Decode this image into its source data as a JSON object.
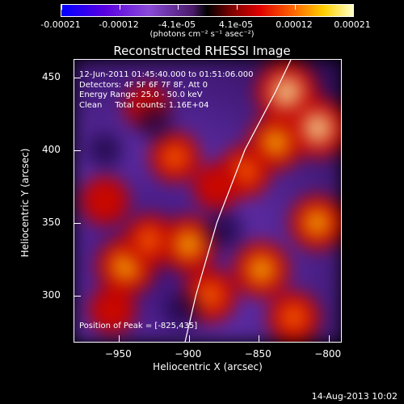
{
  "colorbar": {
    "labels": [
      "-0.00021",
      "-0.00012",
      "-4.1e-05",
      "4.1e-05",
      "0.00012",
      "0.00021"
    ],
    "units": "(photons cm⁻² s⁻¹ asec⁻²)"
  },
  "chart_data": {
    "type": "heatmap",
    "title": "Reconstructed RHESSI Image",
    "xlabel": "Heliocentric X (arcsec)",
    "ylabel": "Heliocentric Y (arcsec)",
    "xlim": [
      -982,
      -790
    ],
    "ylim": [
      267,
      462
    ],
    "x_ticks": [
      -950,
      -900,
      -850,
      -800
    ],
    "y_ticks": [
      300,
      350,
      400,
      450
    ],
    "x_tick_labels": [
      "−950",
      "−900",
      "−850",
      "−800"
    ],
    "y_tick_labels": [
      "300",
      "350",
      "400",
      "450"
    ],
    "annotations": [
      "12-Jun-2011 01:45:40.000 to 01:51:06.000",
      "Detectors: 4F 5F 6F 7F 8F, Att 0",
      "Energy Range: 25.0 - 50.0 keV",
      "Clean     Total counts: 1.16E+04"
    ],
    "peak_label": "Position of Peak = [-825,435]",
    "peak": [
      -825,
      435
    ],
    "colorbar_range": [
      -0.00021,
      0.00021
    ],
    "limb_curve": [
      [
        -903,
        267
      ],
      [
        -895,
        300
      ],
      [
        -880,
        350
      ],
      [
        -860,
        400
      ],
      [
        -838,
        440
      ],
      [
        -827,
        462
      ]
    ],
    "sources": [
      {
        "x": -830,
        "y": 440,
        "v": 1.0
      },
      {
        "x": -808,
        "y": 415,
        "v": 0.95
      },
      {
        "x": -838,
        "y": 405,
        "v": 0.8
      },
      {
        "x": -860,
        "y": 385,
        "v": 0.7
      },
      {
        "x": -945,
        "y": 320,
        "v": 0.9
      },
      {
        "x": -928,
        "y": 338,
        "v": 0.7
      },
      {
        "x": -900,
        "y": 335,
        "v": 0.85
      },
      {
        "x": -885,
        "y": 300,
        "v": 0.75
      },
      {
        "x": -848,
        "y": 318,
        "v": 0.85
      },
      {
        "x": -808,
        "y": 350,
        "v": 0.8
      },
      {
        "x": -825,
        "y": 285,
        "v": 0.7
      },
      {
        "x": -910,
        "y": 395,
        "v": 0.65
      },
      {
        "x": -960,
        "y": 365,
        "v": 0.6
      },
      {
        "x": -880,
        "y": 375,
        "v": 0.55
      },
      {
        "x": -930,
        "y": 430,
        "v": 0.5
      },
      {
        "x": -955,
        "y": 290,
        "v": 0.55
      }
    ]
  },
  "footer": {
    "date": "14-Aug-2013 10:02"
  }
}
